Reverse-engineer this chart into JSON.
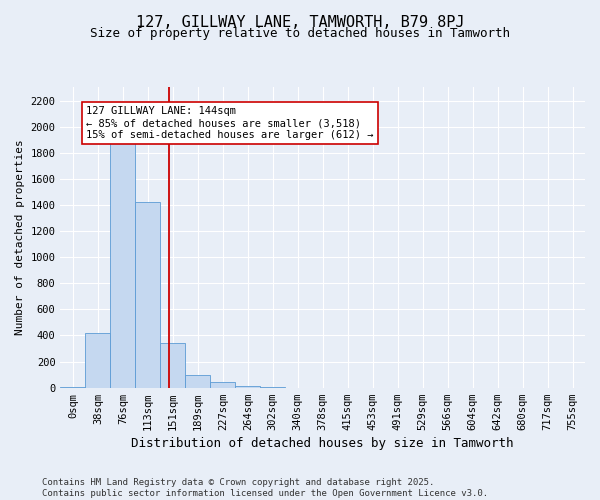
{
  "title": "127, GILLWAY LANE, TAMWORTH, B79 8PJ",
  "subtitle": "Size of property relative to detached houses in Tamworth",
  "xlabel": "Distribution of detached houses by size in Tamworth",
  "ylabel": "Number of detached properties",
  "bar_labels": [
    "0sqm",
    "38sqm",
    "76sqm",
    "113sqm",
    "151sqm",
    "189sqm",
    "227sqm",
    "264sqm",
    "302sqm",
    "340sqm",
    "378sqm",
    "415sqm",
    "453sqm",
    "491sqm",
    "529sqm",
    "566sqm",
    "604sqm",
    "642sqm",
    "680sqm",
    "717sqm",
    "755sqm"
  ],
  "bar_values": [
    2,
    420,
    2100,
    1420,
    340,
    100,
    40,
    10,
    2,
    0,
    0,
    0,
    0,
    0,
    0,
    0,
    0,
    0,
    0,
    0,
    0
  ],
  "bar_color": "#c5d8f0",
  "bar_edge_color": "#5b9bd5",
  "property_line_x": 3.83,
  "property_line_color": "#cc0000",
  "annotation_text": "127 GILLWAY LANE: 144sqm\n← 85% of detached houses are smaller (3,518)\n15% of semi-detached houses are larger (612) →",
  "annotation_box_color": "#ffffff",
  "annotation_box_edge_color": "#cc0000",
  "ylim": [
    0,
    2300
  ],
  "yticks": [
    0,
    200,
    400,
    600,
    800,
    1000,
    1200,
    1400,
    1600,
    1800,
    2000,
    2200
  ],
  "bg_color": "#e8eef7",
  "plot_bg_color": "#e8eef7",
  "grid_color": "#ffffff",
  "footer": "Contains HM Land Registry data © Crown copyright and database right 2025.\nContains public sector information licensed under the Open Government Licence v3.0.",
  "title_fontsize": 11,
  "subtitle_fontsize": 9,
  "annotation_fontsize": 7.5,
  "ylabel_fontsize": 8,
  "xlabel_fontsize": 9,
  "tick_fontsize": 7.5,
  "footer_fontsize": 6.5
}
